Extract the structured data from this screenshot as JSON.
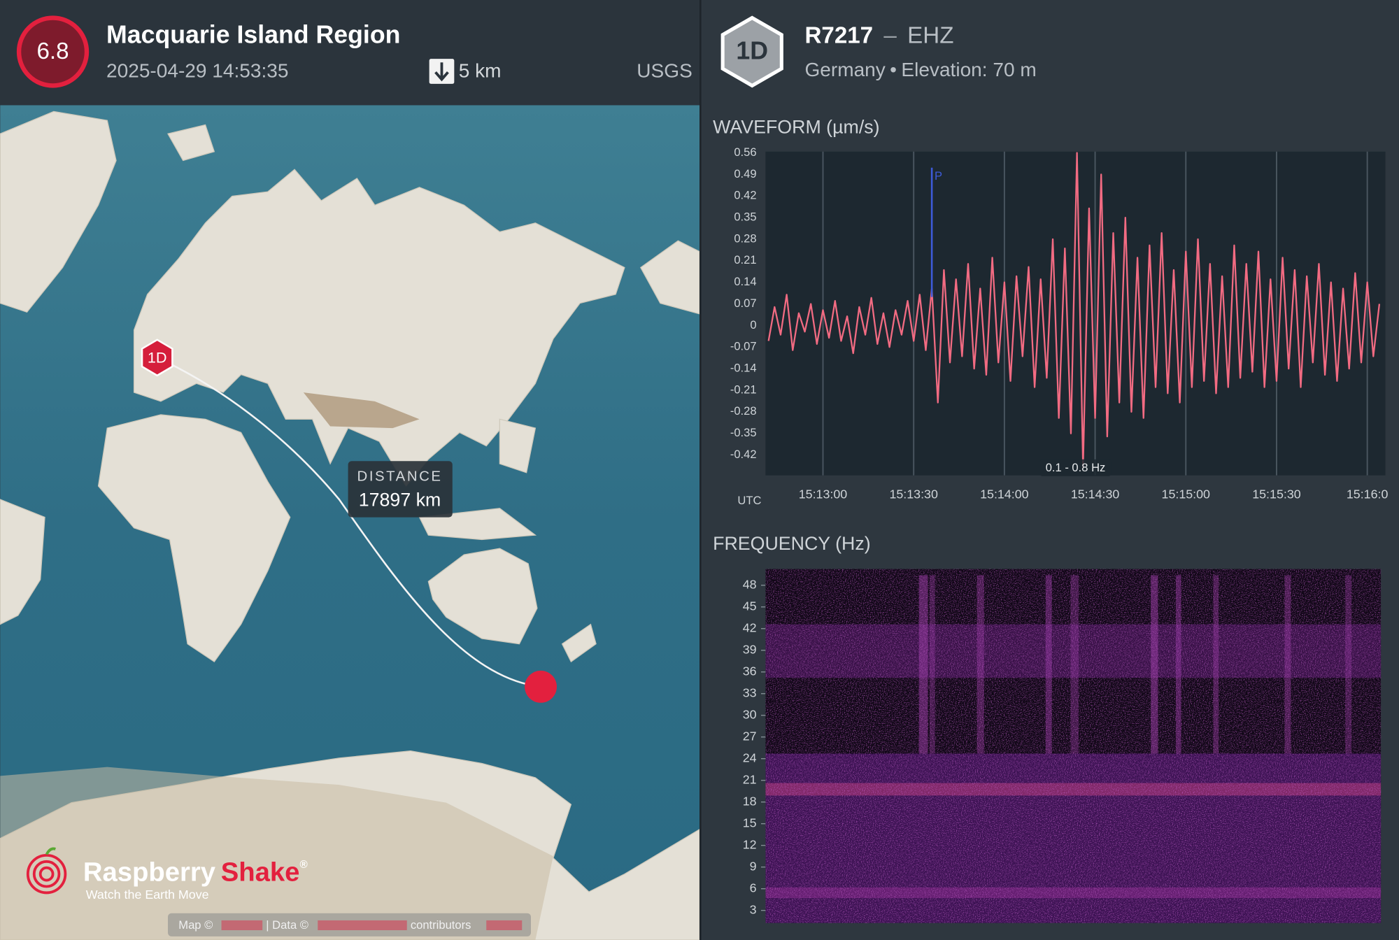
{
  "event": {
    "magnitude": "6.8",
    "title": "Macquarie Island Region",
    "time": "2025-04-29 14:53:35",
    "depth": "5 km",
    "source": "USGS"
  },
  "station": {
    "badge": "1D",
    "code": "R7217",
    "separator": "–",
    "channel": "EHZ",
    "country": "Germany",
    "bullet": "•",
    "elevation": "Elevation: 70 m"
  },
  "map": {
    "station_marker": "1D",
    "distance_label": "DISTANCE",
    "distance": "17897 km",
    "logo_name": "Raspberry",
    "logo_name_accent": "Shake",
    "logo_mark": "®",
    "logo_tagline": "Watch the Earth Move",
    "attribution": [
      "Map ©",
      "| Data ©",
      "contributors"
    ]
  },
  "chart_data": [
    {
      "type": "line",
      "title": "WAVEFORM (µm/s)",
      "x_axis_label": "UTC",
      "color": "#f26b82",
      "grid": true,
      "filter_label": "0.1 - 0.8 Hz",
      "annotations": [
        {
          "label": "P",
          "x": "15:13:36",
          "color": "#3d5bd9"
        }
      ],
      "xlim": [
        "15:12:41",
        "15:16:06"
      ],
      "xticks": [
        "15:13:00",
        "15:13:30",
        "15:14:00",
        "15:14:30",
        "15:15:00",
        "15:15:30",
        {
          "value": "15:16:00",
          "label": "15:16:0"
        }
      ],
      "ylim": [
        -0.486,
        0.564
      ],
      "yticks": [
        0.56,
        0.49,
        0.42,
        0.35,
        0.28,
        0.21,
        0.14,
        0.07,
        0,
        -0.07,
        -0.14,
        -0.21,
        -0.28,
        -0.35,
        -0.42
      ],
      "x": [
        "15:12:42",
        "15:12:44",
        "15:12:46",
        "15:12:48",
        "15:12:50",
        "15:12:52",
        "15:12:54",
        "15:12:56",
        "15:12:58",
        "15:13:00",
        "15:13:02",
        "15:13:04",
        "15:13:06",
        "15:13:08",
        "15:13:10",
        "15:13:12",
        "15:13:14",
        "15:13:16",
        "15:13:18",
        "15:13:20",
        "15:13:22",
        "15:13:24",
        "15:13:26",
        "15:13:28",
        "15:13:30",
        "15:13:32",
        "15:13:34",
        "15:13:36",
        "15:13:38",
        "15:13:40",
        "15:13:42",
        "15:13:44",
        "15:13:46",
        "15:13:48",
        "15:13:50",
        "15:13:52",
        "15:13:54",
        "15:13:56",
        "15:13:58",
        "15:14:00",
        "15:14:02",
        "15:14:04",
        "15:14:06",
        "15:14:08",
        "15:14:10",
        "15:14:12",
        "15:14:14",
        "15:14:16",
        "15:14:18",
        "15:14:20",
        "15:14:22",
        "15:14:24",
        "15:14:26",
        "15:14:28",
        "15:14:30",
        "15:14:32",
        "15:14:34",
        "15:14:36",
        "15:14:38",
        "15:14:40",
        "15:14:42",
        "15:14:44",
        "15:14:46",
        "15:14:48",
        "15:14:50",
        "15:14:52",
        "15:14:54",
        "15:14:56",
        "15:14:58",
        "15:15:00",
        "15:15:02",
        "15:15:04",
        "15:15:06",
        "15:15:08",
        "15:15:10",
        "15:15:12",
        "15:15:14",
        "15:15:16",
        "15:15:18",
        "15:15:20",
        "15:15:22",
        "15:15:24",
        "15:15:26",
        "15:15:28",
        "15:15:30",
        "15:15:32",
        "15:15:34",
        "15:15:36",
        "15:15:38",
        "15:15:40",
        "15:15:42",
        "15:15:44",
        "15:15:46",
        "15:15:48",
        "15:15:50",
        "15:15:52",
        "15:15:54",
        "15:15:56",
        "15:15:58",
        "15:16:00",
        "15:16:02",
        "15:16:04"
      ],
      "values": [
        -0.05,
        0.06,
        -0.03,
        0.1,
        -0.08,
        0.04,
        -0.02,
        0.07,
        -0.06,
        0.05,
        -0.04,
        0.08,
        -0.05,
        0.03,
        -0.09,
        0.06,
        -0.03,
        0.09,
        -0.06,
        0.04,
        -0.07,
        0.05,
        -0.03,
        0.08,
        -0.05,
        0.1,
        -0.08,
        0.12,
        -0.25,
        0.18,
        -0.12,
        0.15,
        -0.1,
        0.2,
        -0.14,
        0.12,
        -0.16,
        0.22,
        -0.12,
        0.14,
        -0.18,
        0.16,
        -0.1,
        0.19,
        -0.2,
        0.15,
        -0.17,
        0.28,
        -0.3,
        0.25,
        -0.35,
        0.56,
        -0.46,
        0.38,
        -0.3,
        0.49,
        -0.36,
        0.3,
        -0.25,
        0.35,
        -0.28,
        0.22,
        -0.3,
        0.26,
        -0.2,
        0.3,
        -0.22,
        0.18,
        -0.25,
        0.24,
        -0.2,
        0.28,
        -0.18,
        0.2,
        -0.22,
        0.16,
        -0.2,
        0.26,
        -0.17,
        0.2,
        -0.15,
        0.24,
        -0.2,
        0.15,
        -0.18,
        0.22,
        -0.14,
        0.18,
        -0.2,
        0.16,
        -0.12,
        0.2,
        -0.16,
        0.14,
        -0.18,
        0.12,
        -0.14,
        0.17,
        -0.12,
        0.14,
        -0.1,
        0.07
      ]
    },
    {
      "type": "spectrogram",
      "title": "FREQUENCY (Hz)",
      "xlim": [
        "15:12:41",
        "15:16:06"
      ],
      "ylim": [
        1.25,
        50.25
      ],
      "yticks": [
        48,
        45,
        42,
        39,
        36,
        33,
        30,
        27,
        24,
        21,
        18,
        15,
        12,
        9,
        6,
        3
      ]
    }
  ]
}
